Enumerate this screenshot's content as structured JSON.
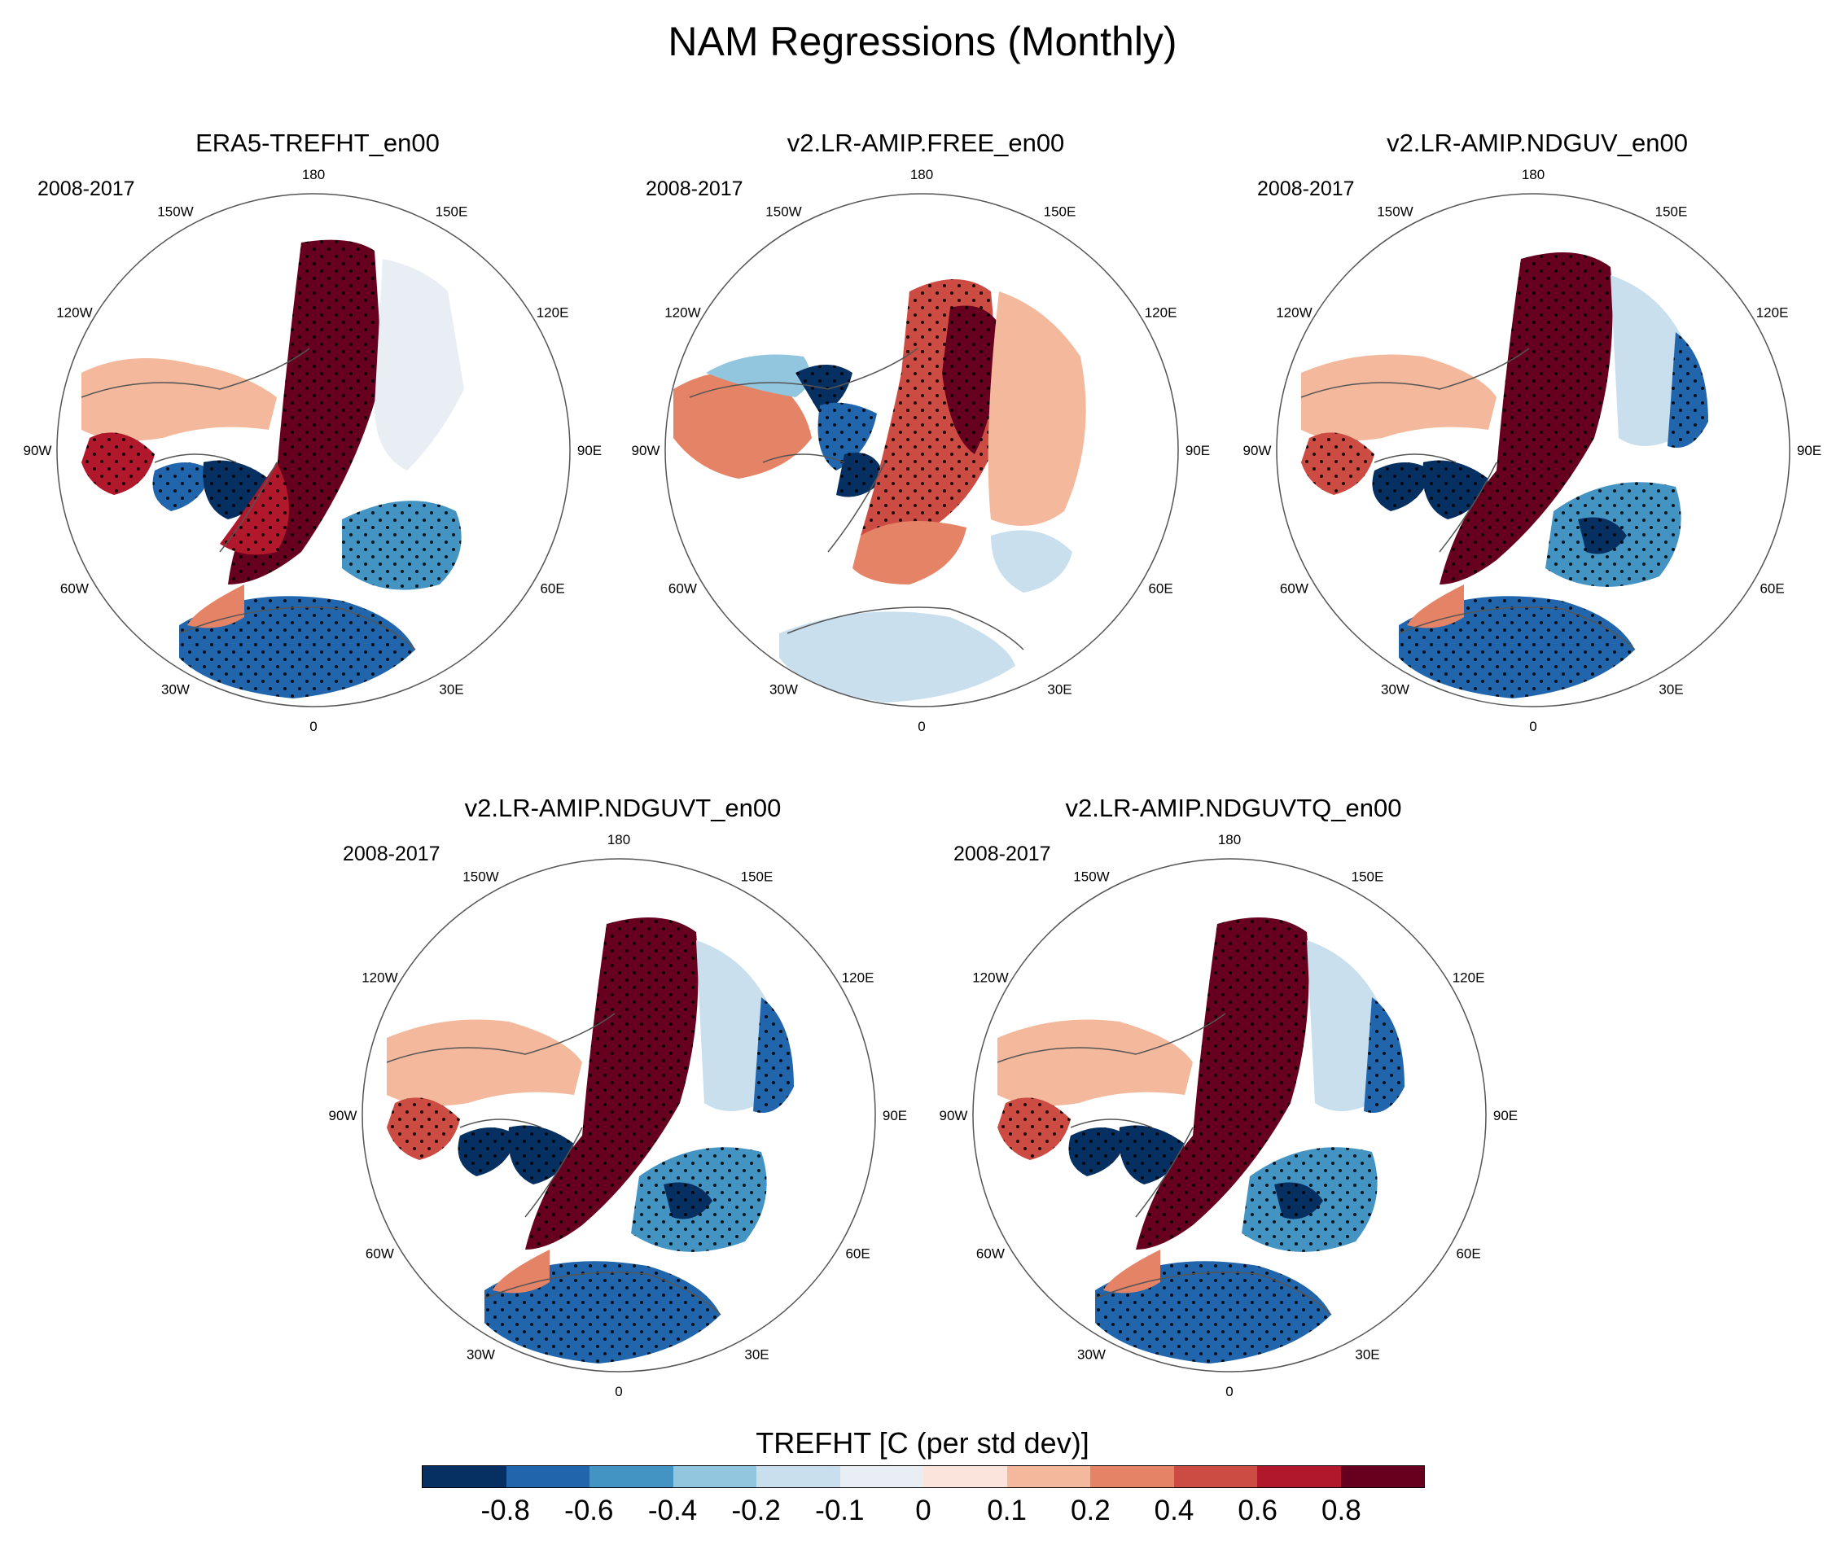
{
  "title": "NAM Regressions (Monthly)",
  "panels": [
    {
      "title": "ERA5-TREFHT_en00",
      "period": "2008-2017",
      "variant": "era5"
    },
    {
      "title": "v2.LR-AMIP.FREE_en00",
      "period": "2008-2017",
      "variant": "free"
    },
    {
      "title": "v2.LR-AMIP.NDGUV_en00",
      "period": "2008-2017",
      "variant": "nudged"
    },
    {
      "title": "v2.LR-AMIP.NDGUVT_en00",
      "period": "2008-2017",
      "variant": "nudged"
    },
    {
      "title": "v2.LR-AMIP.NDGUVTQ_en00",
      "period": "2008-2017",
      "variant": "nudged"
    }
  ],
  "longitude_labels": [
    "180",
    "150E",
    "120E",
    "90E",
    "60E",
    "30E",
    "0",
    "30W",
    "60W",
    "90W",
    "120W",
    "150W"
  ],
  "colorbar": {
    "title": "TREFHT [C (per std dev)]",
    "levels": [
      "-0.8",
      "-0.6",
      "-0.4",
      "-0.2",
      "-0.1",
      "0",
      "0.1",
      "0.2",
      "0.4",
      "0.6",
      "0.8"
    ],
    "colors": [
      "#053061",
      "#2166ac",
      "#4393c3",
      "#92c5de",
      "#c9dfee",
      "#e8eef3",
      "#fbe4dc",
      "#f4b99c",
      "#e58366",
      "#cc4c43",
      "#b2182b",
      "#67001f"
    ]
  }
}
